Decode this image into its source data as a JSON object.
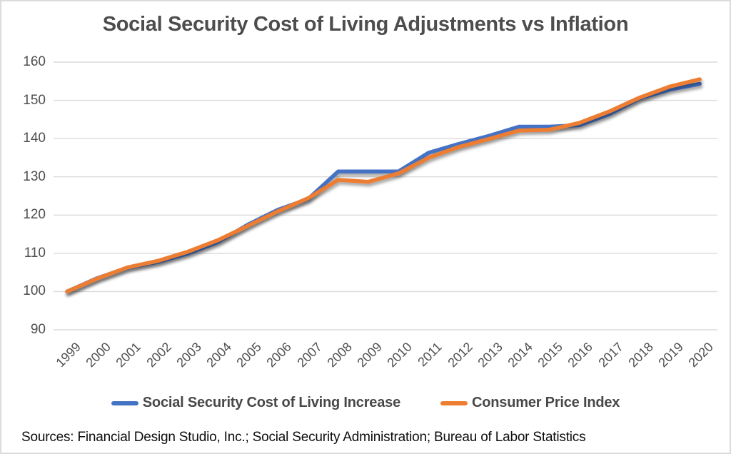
{
  "page": {
    "background": "#ffffff",
    "border_color": "#dcdcdc"
  },
  "chart_data": {
    "type": "line",
    "title": "Social Security Cost of Living Adjustments vs Inflation",
    "xlabel": "",
    "ylabel": "",
    "categories": [
      "1999",
      "2000",
      "2001",
      "2002",
      "2003",
      "2004",
      "2005",
      "2006",
      "2007",
      "2008",
      "2009",
      "2010",
      "2011",
      "2012",
      "2013",
      "2014",
      "2015",
      "2016",
      "2017",
      "2018",
      "2019",
      "2020"
    ],
    "series": [
      {
        "name": "Social Security Cost of Living Increase",
        "color": "#4472C4",
        "values": [
          100,
          103.5,
          106.2,
          107.7,
          109.9,
          112.9,
          117.5,
          121.4,
          124.2,
          131.4,
          131.4,
          131.4,
          136.3,
          138.6,
          140.7,
          143.1,
          143.1,
          143.5,
          146.4,
          150.5,
          152.8,
          154.3
        ]
      },
      {
        "name": "Consumer Price Index",
        "color": "#ED7D31",
        "values": [
          100,
          103.4,
          106.3,
          108.0,
          110.4,
          113.4,
          117.2,
          121.0,
          124.4,
          129.2,
          128.7,
          130.9,
          135.0,
          137.8,
          139.9,
          142.1,
          142.3,
          144.1,
          147.1,
          150.7,
          153.6,
          155.5
        ]
      }
    ],
    "ylim": [
      90,
      160
    ],
    "yticks": [
      160,
      150,
      140,
      130,
      120,
      110,
      100,
      90
    ],
    "grid": "horizontal",
    "gridline_color": "#dbdbdb",
    "axis_label_color": "#4f4f4f",
    "title_color": "#4d4d4d",
    "legend_position": "bottom",
    "line_shadow": true
  },
  "footer": {
    "source_note": "Sources: Financial Design Studio, Inc.; Social Security Administration; Bureau of Labor Statistics"
  }
}
